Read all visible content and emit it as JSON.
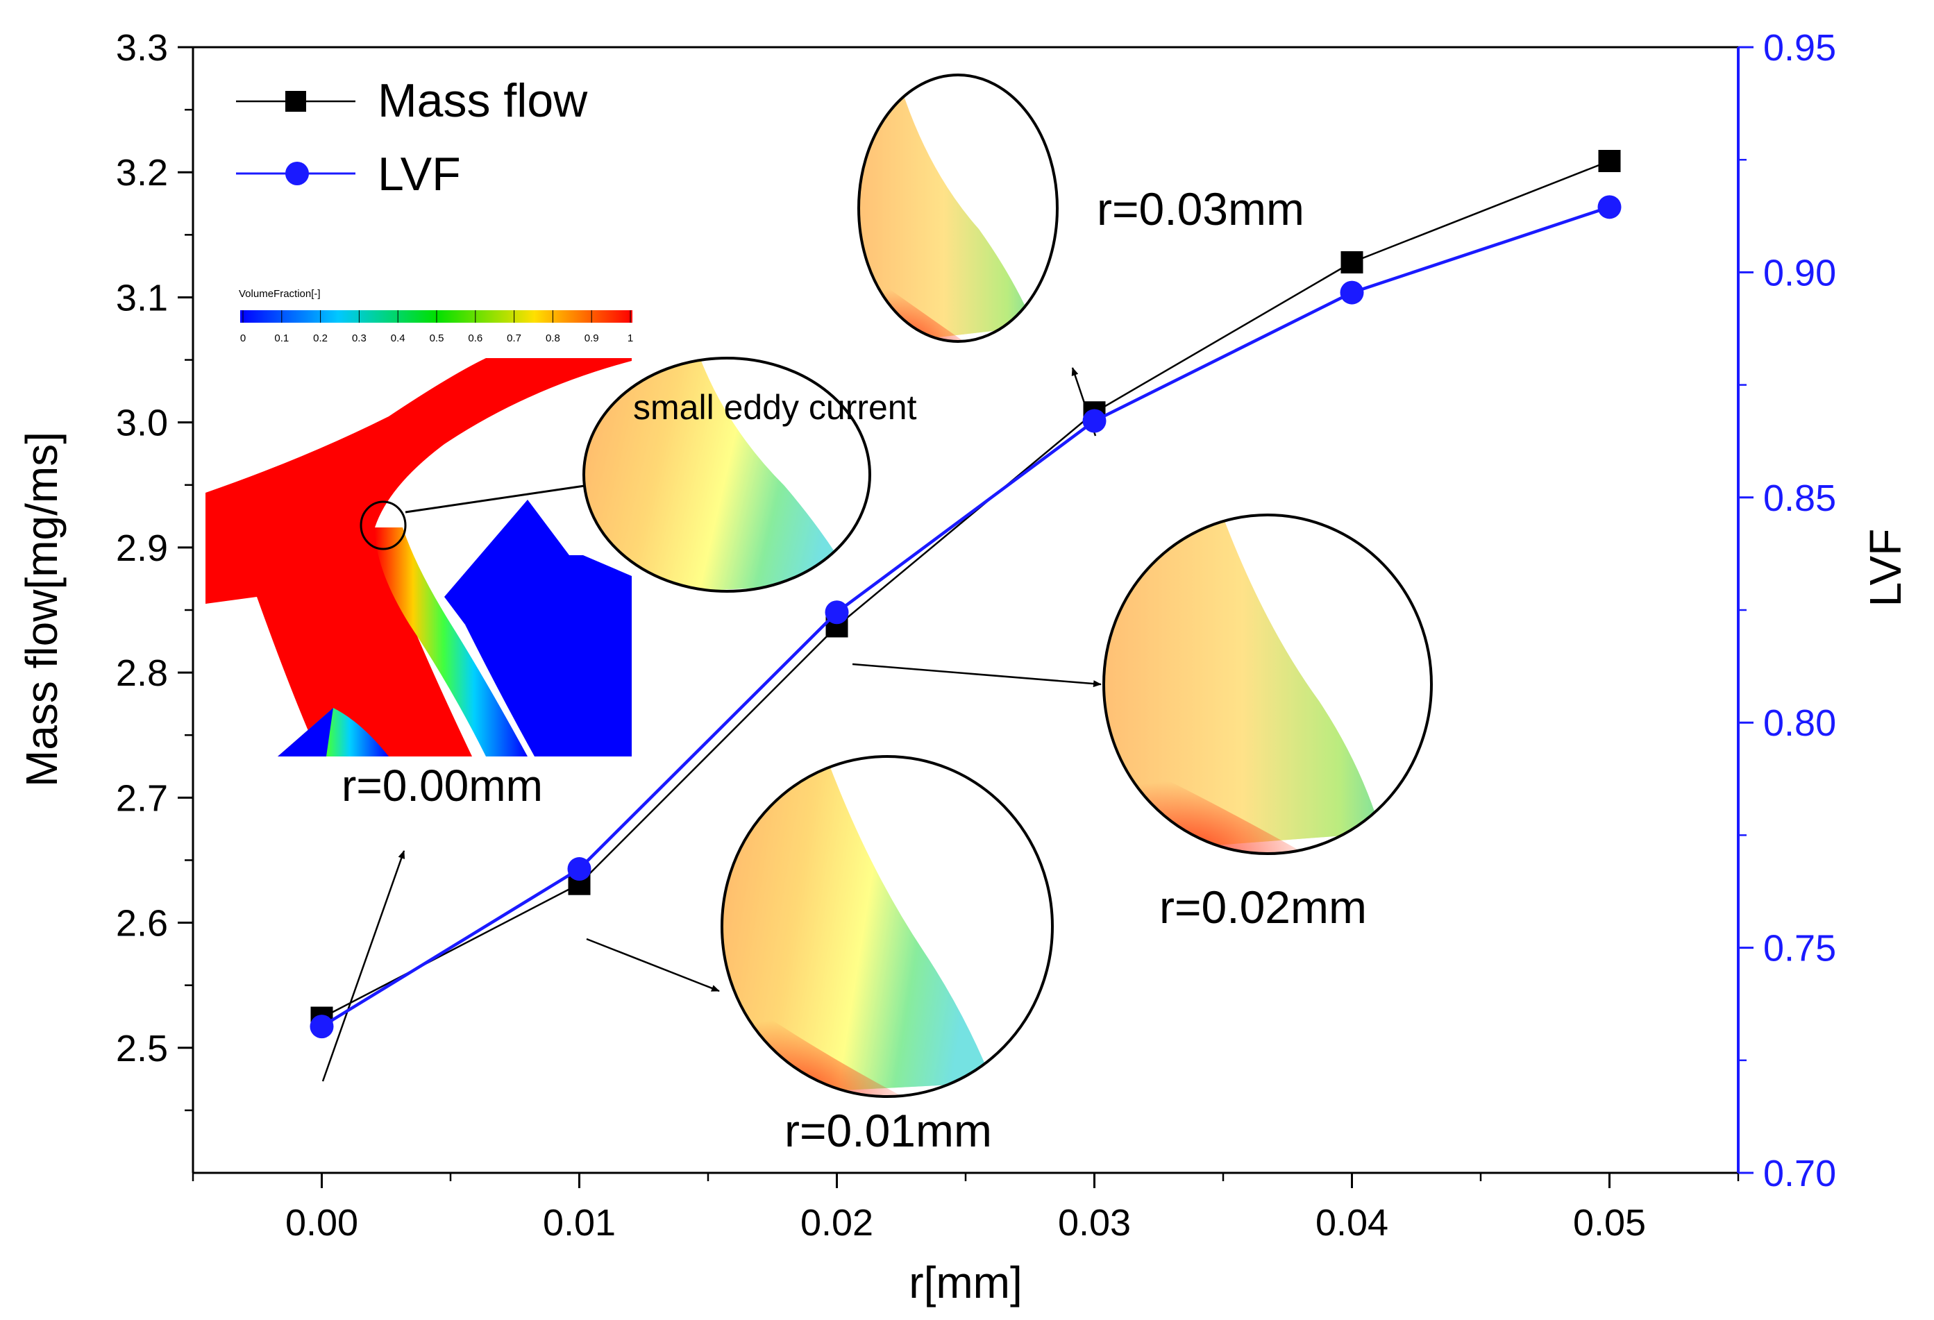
{
  "chart_data": {
    "type": "line",
    "x_label": "r[mm]",
    "y_left_label": "Mass flow[mg/ms]",
    "y_right_label": "LVF",
    "x_range": [
      -0.005,
      0.055
    ],
    "y_left_range": [
      2.4,
      3.3
    ],
    "y_right_range": [
      0.7,
      0.95
    ],
    "x_ticks": [
      "0.00",
      "0.01",
      "0.02",
      "0.03",
      "0.04",
      "0.05"
    ],
    "y_left_ticks": [
      "2.5",
      "2.6",
      "2.7",
      "2.8",
      "2.9",
      "3.0",
      "3.1",
      "3.2",
      "3.3"
    ],
    "y_right_ticks": [
      "0.70",
      "0.75",
      "0.80",
      "0.85",
      "0.90",
      "0.95"
    ],
    "x": [
      0.0,
      0.01,
      0.02,
      0.03,
      0.04,
      0.05
    ],
    "series": [
      {
        "name": "Mass flow",
        "axis": "left",
        "marker": "square",
        "color": "#000000",
        "values": [
          2.524,
          2.631,
          2.837,
          3.008,
          3.128,
          3.209
        ]
      },
      {
        "name": "LVF",
        "axis": "right",
        "marker": "circle",
        "color": "#1a1aff",
        "values": [
          0.7325,
          0.7675,
          0.8245,
          0.867,
          0.8955,
          0.9145
        ]
      }
    ],
    "legend": {
      "position": "top-left",
      "entries": [
        "Mass flow",
        "LVF"
      ]
    },
    "annotations": {
      "r000": "r=0.00mm",
      "r001": "r=0.01mm",
      "r002": "r=0.02mm",
      "r003": "r=0.03mm",
      "eddy": "small eddy current"
    },
    "colorbar": {
      "title": "VolumeFraction[-]",
      "ticks": [
        "0",
        "0.1",
        "0.2",
        "0.3",
        "0.4",
        "0.5",
        "0.6",
        "0.7",
        "0.8",
        "0.9",
        "1"
      ]
    }
  }
}
